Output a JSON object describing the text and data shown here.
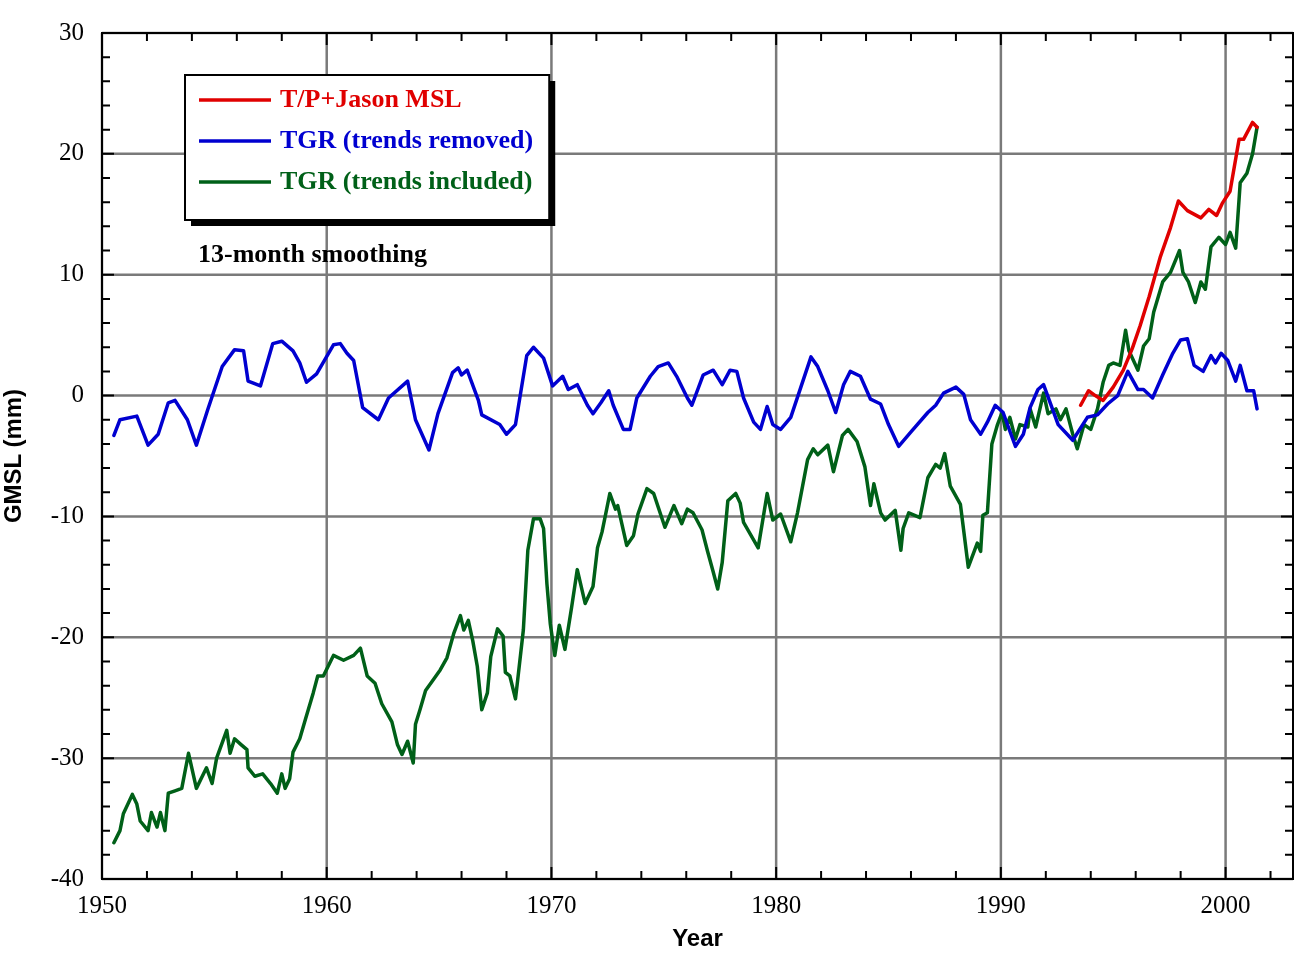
{
  "chart_data": {
    "type": "line",
    "xlabel": "Year",
    "ylabel": "GMSL (mm)",
    "annotations": [
      "13-month smoothing"
    ],
    "xlim": [
      1950,
      2003
    ],
    "xticks": [
      1950,
      {
        "value": 1952,
        "label": null
      },
      {
        "value": 1954,
        "label": null
      },
      {
        "value": 1956,
        "label": null
      },
      {
        "value": 1958,
        "label": null
      },
      1960,
      {
        "value": 1962,
        "label": null
      },
      {
        "value": 1964,
        "label": null
      },
      {
        "value": 1966,
        "label": null
      },
      {
        "value": 1968,
        "label": null
      },
      1970,
      {
        "value": 1972,
        "label": null
      },
      {
        "value": 1974,
        "label": null
      },
      {
        "value": 1976,
        "label": null
      },
      {
        "value": 1978,
        "label": null
      },
      1980,
      {
        "value": 1982,
        "label": null
      },
      {
        "value": 1984,
        "label": null
      },
      {
        "value": 1986,
        "label": null
      },
      {
        "value": 1988,
        "label": null
      },
      1990,
      {
        "value": 1992,
        "label": null
      },
      {
        "value": 1994,
        "label": null
      },
      {
        "value": 1996,
        "label": null
      },
      {
        "value": 1998,
        "label": null
      },
      2000,
      {
        "value": 2002,
        "label": null
      }
    ],
    "ylim": [
      -40,
      30
    ],
    "yticks": [
      -40,
      {
        "value": -38,
        "label": null
      },
      {
        "value": -36,
        "label": null
      },
      {
        "value": -34,
        "label": null
      },
      {
        "value": -32,
        "label": null
      },
      -30,
      {
        "value": -28,
        "label": null
      },
      {
        "value": -26,
        "label": null
      },
      {
        "value": -24,
        "label": null
      },
      {
        "value": -22,
        "label": null
      },
      -20,
      {
        "value": -18,
        "label": null
      },
      {
        "value": -16,
        "label": null
      },
      {
        "value": -14,
        "label": null
      },
      {
        "value": -12,
        "label": null
      },
      -10,
      {
        "value": -8,
        "label": null
      },
      {
        "value": -6,
        "label": null
      },
      {
        "value": -4,
        "label": null
      },
      {
        "value": -2,
        "label": null
      },
      0,
      {
        "value": 2,
        "label": null
      },
      {
        "value": 4,
        "label": null
      },
      {
        "value": 6,
        "label": null
      },
      {
        "value": 8,
        "label": null
      },
      10,
      {
        "value": 12,
        "label": null
      },
      {
        "value": 14,
        "label": null
      },
      {
        "value": 16,
        "label": null
      },
      {
        "value": 18,
        "label": null
      },
      20,
      {
        "value": 22,
        "label": null
      },
      {
        "value": 24,
        "label": null
      },
      {
        "value": 26,
        "label": null
      },
      {
        "value": 28,
        "label": null
      },
      30
    ],
    "grid": true,
    "legend": "top left",
    "marker": "none",
    "line_style": "solid",
    "series": [
      {
        "name": "T/P+Jason MSL",
        "color": "#e00000",
        "x": [
          1993.55,
          1993.9,
          1994.2,
          1994.55,
          1995.0,
          1995.45,
          1995.85,
          1996.2,
          1996.6,
          1997.1,
          1997.55,
          1997.9,
          1998.3,
          1998.9,
          1999.25,
          1999.6,
          1999.85,
          2000.2,
          2000.6,
          2000.8,
          2001.2,
          2001.4
        ],
        "values": [
          -0.8,
          0.4,
          0.0,
          -0.4,
          0.7,
          2.1,
          3.9,
          5.8,
          8.2,
          11.5,
          13.9,
          16.1,
          15.3,
          14.7,
          15.4,
          14.9,
          15.9,
          16.9,
          21.2,
          21.2,
          22.6,
          22.2
        ]
      },
      {
        "name": "TGR (trends removed)",
        "color": "#0000d0",
        "x": [
          1950.53,
          1950.8,
          1951.55,
          1952.05,
          1952.5,
          1952.95,
          1953.25,
          1953.8,
          1954.2,
          1954.7,
          1955.35,
          1955.9,
          1956.3,
          1956.5,
          1957.05,
          1957.6,
          1958.0,
          1958.5,
          1958.8,
          1959.1,
          1959.55,
          1960.3,
          1960.6,
          1960.9,
          1961.2,
          1961.6,
          1962.3,
          1962.75,
          1963.6,
          1963.95,
          1964.55,
          1964.95,
          1965.6,
          1965.85,
          1966.0,
          1966.25,
          1966.75,
          1966.9,
          1967.7,
          1968.0,
          1968.4,
          1968.9,
          1969.2,
          1969.65,
          1970.05,
          1970.5,
          1970.75,
          1971.15,
          1971.6,
          1971.85,
          1972.2,
          1972.55,
          1972.75,
          1973.2,
          1973.5,
          1973.8,
          1974.4,
          1974.75,
          1975.2,
          1975.6,
          1976.05,
          1976.25,
          1976.75,
          1977.2,
          1977.6,
          1977.95,
          1978.25,
          1978.55,
          1979.0,
          1979.3,
          1979.6,
          1979.85,
          1980.2,
          1980.65,
          1981.1,
          1981.55,
          1981.85,
          1982.3,
          1982.65,
          1983.0,
          1983.3,
          1983.75,
          1984.2,
          1984.65,
          1985.0,
          1985.45,
          1986.0,
          1986.75,
          1987.1,
          1987.45,
          1988.0,
          1988.35,
          1988.65,
          1989.1,
          1989.4,
          1989.75,
          1990.1,
          1990.45,
          1990.65,
          1991.0,
          1991.3,
          1991.65,
          1991.9,
          1992.55,
          1993.2,
          1993.85,
          1994.3,
          1994.75,
          1995.2,
          1995.65,
          1996.1,
          1996.35,
          1996.75,
          1997.2,
          1997.65,
          1998.0,
          1998.3,
          1998.6,
          1999.0,
          1999.35,
          1999.55,
          1999.8,
          2000.1,
          2000.45,
          2000.65,
          2000.95,
          2001.25,
          2001.4
        ],
        "values": [
          -3.3,
          -2.0,
          -1.7,
          -4.1,
          -3.2,
          -0.6,
          -0.4,
          -2.0,
          -4.1,
          -1.2,
          2.4,
          3.8,
          3.7,
          1.2,
          0.8,
          4.3,
          4.5,
          3.7,
          2.7,
          1.1,
          1.8,
          4.2,
          4.3,
          3.5,
          2.9,
          -1.0,
          -2.0,
          -0.2,
          1.2,
          -2.0,
          -4.5,
          -1.5,
          1.9,
          2.3,
          1.7,
          2.1,
          -0.4,
          -1.6,
          -2.4,
          -3.2,
          -2.4,
          3.3,
          4.0,
          3.1,
          0.8,
          1.6,
          0.5,
          0.9,
          -0.8,
          -1.5,
          -0.6,
          0.4,
          -0.8,
          -2.8,
          -2.8,
          -0.2,
          1.6,
          2.4,
          2.7,
          1.5,
          -0.2,
          -0.8,
          1.7,
          2.1,
          0.9,
          2.1,
          2.0,
          -0.2,
          -2.2,
          -2.8,
          -0.9,
          -2.4,
          -2.8,
          -1.8,
          0.7,
          3.2,
          2.4,
          0.4,
          -1.4,
          0.9,
          2.0,
          1.6,
          -0.3,
          -0.7,
          -2.4,
          -4.2,
          -3.0,
          -1.4,
          -0.8,
          0.2,
          0.7,
          0.1,
          -2.0,
          -3.2,
          -2.2,
          -0.8,
          -1.4,
          -3.2,
          -4.2,
          -3.2,
          -1.0,
          0.5,
          0.9,
          -2.4,
          -3.7,
          -1.8,
          -1.6,
          -0.7,
          0.0,
          2.0,
          0.5,
          0.5,
          -0.2,
          1.7,
          3.5,
          4.6,
          4.7,
          2.5,
          2.0,
          3.3,
          2.7,
          3.5,
          2.9,
          1.2,
          2.5,
          0.4,
          0.4,
          -1.1
        ]
      },
      {
        "name": "TGR (trends included)",
        "color": "#006018",
        "x": [
          1950.53,
          1950.8,
          1950.95,
          1951.35,
          1951.55,
          1951.7,
          1952.05,
          1952.2,
          1952.45,
          1952.6,
          1952.8,
          1952.95,
          1953.25,
          1953.55,
          1953.85,
          1954.2,
          1954.65,
          1954.9,
          1955.1,
          1955.55,
          1955.7,
          1955.9,
          1956.2,
          1956.45,
          1956.5,
          1956.8,
          1957.15,
          1957.5,
          1957.8,
          1958.0,
          1958.15,
          1958.35,
          1958.5,
          1958.8,
          1959.05,
          1959.4,
          1959.6,
          1959.85,
          1960.3,
          1960.75,
          1961.2,
          1961.5,
          1961.8,
          1962.15,
          1962.45,
          1962.9,
          1963.15,
          1963.35,
          1963.6,
          1963.85,
          1963.95,
          1964.15,
          1964.4,
          1964.75,
          1965.05,
          1965.35,
          1965.65,
          1965.95,
          1966.1,
          1966.3,
          1966.5,
          1966.7,
          1966.9,
          1967.15,
          1967.3,
          1967.6,
          1967.85,
          1967.95,
          1968.15,
          1968.4,
          1968.5,
          1968.75,
          1968.95,
          1969.2,
          1969.5,
          1969.65,
          1969.8,
          1969.95,
          1970.15,
          1970.35,
          1970.6,
          1970.9,
          1971.15,
          1971.5,
          1971.85,
          1972.05,
          1972.25,
          1972.6,
          1972.85,
          1972.95,
          1973.35,
          1973.65,
          1973.85,
          1974.25,
          1974.55,
          1975.05,
          1975.45,
          1975.8,
          1976.05,
          1976.3,
          1976.7,
          1976.95,
          1977.2,
          1977.4,
          1977.6,
          1977.85,
          1978.2,
          1978.4,
          1978.55,
          1979.2,
          1979.6,
          1979.85,
          1980.2,
          1980.65,
          1980.95,
          1981.4,
          1981.65,
          1981.85,
          1982.3,
          1982.55,
          1982.95,
          1983.2,
          1983.6,
          1983.95,
          1984.2,
          1984.35,
          1984.65,
          1984.85,
          1985.3,
          1985.55,
          1985.65,
          1985.9,
          1986.4,
          1986.75,
          1987.1,
          1987.3,
          1987.5,
          1987.75,
          1988.2,
          1988.55,
          1988.95,
          1989.1,
          1989.2,
          1989.4,
          1989.6,
          1989.85,
          1990.05,
          1990.2,
          1990.4,
          1990.65,
          1990.85,
          1991.2,
          1991.3,
          1991.55,
          1991.9,
          1992.1,
          1992.45,
          1992.65,
          1992.9,
          1993.2,
          1993.4,
          1993.7,
          1994.0,
          1994.3,
          1994.55,
          1994.8,
          1995.0,
          1995.3,
          1995.55,
          1995.7,
          1996.1,
          1996.35,
          1996.6,
          1996.8,
          1997.2,
          1997.55,
          1997.95,
          1998.1,
          1998.35,
          1998.65,
          1998.9,
          1999.1,
          1999.35,
          1999.7,
          2000.0,
          2000.2,
          2000.45,
          2000.65,
          2000.95,
          2001.2,
          2001.4
        ],
        "values": [
          -37.0,
          -36.0,
          -34.6,
          -33.0,
          -33.8,
          -35.2,
          -36.0,
          -34.5,
          -35.7,
          -34.5,
          -36.0,
          -32.9,
          -32.7,
          -32.5,
          -29.6,
          -32.5,
          -30.8,
          -32.1,
          -30.0,
          -27.7,
          -29.6,
          -28.4,
          -28.9,
          -29.3,
          -30.8,
          -31.5,
          -31.3,
          -32.1,
          -32.9,
          -31.3,
          -32.5,
          -31.7,
          -29.5,
          -28.4,
          -26.8,
          -24.6,
          -23.2,
          -23.2,
          -21.5,
          -21.9,
          -21.5,
          -20.9,
          -23.2,
          -23.8,
          -25.5,
          -27.0,
          -28.9,
          -29.7,
          -28.6,
          -30.4,
          -27.2,
          -26.0,
          -24.4,
          -23.5,
          -22.7,
          -21.7,
          -19.7,
          -18.2,
          -19.4,
          -18.6,
          -20.3,
          -22.4,
          -26.0,
          -24.6,
          -21.6,
          -19.3,
          -19.9,
          -22.9,
          -23.2,
          -25.1,
          -23.5,
          -19.4,
          -12.8,
          -10.2,
          -10.2,
          -11.0,
          -15.6,
          -18.9,
          -21.5,
          -19.0,
          -21.0,
          -17.5,
          -14.4,
          -17.2,
          -15.8,
          -12.6,
          -11.3,
          -8.1,
          -9.4,
          -9.1,
          -12.4,
          -11.6,
          -9.8,
          -7.7,
          -8.1,
          -10.9,
          -9.1,
          -10.6,
          -9.4,
          -9.7,
          -11.1,
          -12.9,
          -14.6,
          -16.0,
          -13.8,
          -8.7,
          -8.1,
          -8.9,
          -10.5,
          -12.6,
          -8.1,
          -10.3,
          -9.8,
          -12.1,
          -9.7,
          -5.3,
          -4.4,
          -4.9,
          -4.1,
          -6.3,
          -3.3,
          -2.8,
          -3.8,
          -5.9,
          -9.1,
          -7.3,
          -9.7,
          -10.3,
          -9.5,
          -12.8,
          -11.0,
          -9.7,
          -10.1,
          -6.8,
          -5.7,
          -6.0,
          -4.8,
          -7.5,
          -9.0,
          -14.2,
          -12.2,
          -12.9,
          -9.9,
          -9.7,
          -4.0,
          -2.4,
          -1.4,
          -2.8,
          -1.8,
          -3.6,
          -2.4,
          -2.6,
          -1.1,
          -2.6,
          0.2,
          -1.5,
          -1.1,
          -2.0,
          -1.1,
          -3.2,
          -4.4,
          -2.4,
          -2.8,
          -1.1,
          1.1,
          2.5,
          2.7,
          2.5,
          5.4,
          3.7,
          2.1,
          4.1,
          4.7,
          6.9,
          9.4,
          10.2,
          12.0,
          10.2,
          9.4,
          7.7,
          9.4,
          8.8,
          12.3,
          13.1,
          12.5,
          13.5,
          12.2,
          17.6,
          18.4,
          20.0,
          22.2
        ]
      }
    ]
  }
}
